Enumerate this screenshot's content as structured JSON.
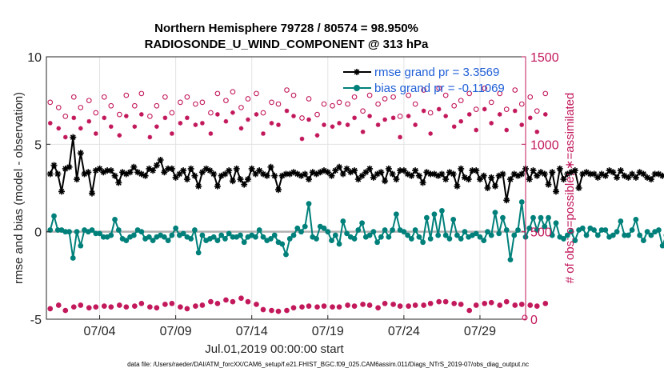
{
  "chart_data": {
    "type": "line",
    "title": "Northern Hemisphere 79728 / 80574 = 98.950%",
    "subtitle": "RADIOSONDE_U_WIND_COMPONENT @ 313 hPa",
    "xlabel": "Jul.01,2019 00:00:00 start",
    "ylabel": "rmse and bias (model - observation)",
    "ylabel_right": "# of obs: o=possible; ∗=assimilated",
    "footnote": "data file: /Users/raeder/DAI/ATM_forcXX/CAM6_setup/f.e21.FHIST_BGC.f09_025.CAM6assim.011/Diags_NTrS_2019-07/obs_diag_output.nc",
    "x_ticks": [
      "07/04",
      "07/09",
      "07/14",
      "07/19",
      "07/24",
      "07/29"
    ],
    "x_tick_days": [
      4,
      9,
      14,
      19,
      24,
      29
    ],
    "xlim": [
      0.5,
      32
    ],
    "ylim": [
      -5,
      10
    ],
    "y_ticks": [
      "-5",
      "0",
      "5",
      "10"
    ],
    "y_tick_values": [
      -5,
      0,
      5,
      10
    ],
    "ylim_right": [
      0,
      1500
    ],
    "y_ticks_right": [
      "0",
      "500",
      "1000",
      "1500"
    ],
    "y_tick_values_right": [
      0,
      500,
      1000,
      1500
    ],
    "grid": true,
    "legend_position": "top-right",
    "colors": {
      "rmse": "#000000",
      "bias": "#00807a",
      "obs": "#c2185b",
      "zero": "#b0b0b0"
    },
    "series": [
      {
        "name": "rmse grand pr = 3.3569",
        "step_days": 0.25,
        "start_day": 0.75,
        "values": [
          3.3,
          3.8,
          3.3,
          2.3,
          3.6,
          3.7,
          5.4,
          3.0,
          4.5,
          3.3,
          3.4,
          2.2,
          3.5,
          3.6,
          3.4,
          3.5,
          3.5,
          3.2,
          2.8,
          3.4,
          3.3,
          3.4,
          3.7,
          3.4,
          3.3,
          3.2,
          3.6,
          3.5,
          3.8,
          4.1,
          3.4,
          3.6,
          3.6,
          3.1,
          3.3,
          3.5,
          3.0,
          3.6,
          3.2,
          2.6,
          3.4,
          3.6,
          3.5,
          3.3,
          2.6,
          3.2,
          3.3,
          3.5,
          2.9,
          3.6,
          3.0,
          2.7,
          3.0,
          3.6,
          3.3,
          3.5,
          3.3,
          3.2,
          3.7,
          3.2,
          2.4,
          3.2,
          3.3,
          3.3,
          3.4,
          3.3,
          3.2,
          3.3,
          3.0,
          3.4,
          3.3,
          3.4,
          3.5,
          3.4,
          3.2,
          3.5,
          3.7,
          3.3,
          3.6,
          3.4,
          3.5,
          3.0,
          3.2,
          3.4,
          3.6,
          3.1,
          3.3,
          3.4,
          2.9,
          3.6,
          3.3,
          3.0,
          3.5,
          3.5,
          3.3,
          3.2,
          3.5,
          3.2,
          2.8,
          3.4,
          3.3,
          3.3,
          3.2,
          3.3,
          3.0,
          3.4,
          3.3,
          2.6,
          3.6,
          3.1,
          3.0,
          3.5,
          3.5,
          3.0,
          3.2,
          2.5,
          3.1,
          2.6,
          3.2,
          3.3,
          1.8,
          3.0,
          3.3,
          3.2,
          3.3,
          3.6,
          3.0,
          3.5,
          3.2,
          3.4,
          3.3,
          2.7,
          3.4,
          2.3,
          3.6,
          3.0,
          3.3,
          3.4,
          3.5,
          2.5,
          3.3,
          3.4,
          3.3,
          3.3,
          3.1,
          3.3,
          3.2,
          3.5,
          3.4,
          3.1,
          3.5,
          3.2,
          3.1,
          3.3,
          3.1,
          3.4,
          3.3,
          3.1,
          3.0,
          3.3,
          3.3,
          3.2,
          3.2,
          3.1
        ]
      },
      {
        "name": "bias grand pr = -0.11069",
        "step_days": 0.25,
        "start_day": 0.75,
        "values": [
          0.1,
          0.9,
          0.1,
          0.1,
          0.0,
          0.0,
          -1.5,
          0.0,
          -0.8,
          0.1,
          0.0,
          0.1,
          -0.1,
          -0.1,
          -0.3,
          -0.3,
          -0.2,
          0.7,
          0.1,
          -0.4,
          -0.5,
          -0.3,
          -0.2,
          0.1,
          0.0,
          -0.4,
          -0.3,
          -0.5,
          -0.3,
          -0.2,
          -0.3,
          -0.5,
          -0.2,
          0.2,
          -0.2,
          -0.1,
          -0.3,
          -0.4,
          0.1,
          -1.2,
          -0.2,
          -0.5,
          -0.4,
          -0.3,
          -0.5,
          -0.2,
          -0.4,
          -0.1,
          -0.3,
          -0.3,
          -0.2,
          -0.6,
          -0.3,
          -0.2,
          -0.3,
          0.1,
          -0.3,
          -0.5,
          -0.4,
          -0.2,
          -0.6,
          -0.7,
          -1.3,
          -0.4,
          -0.2,
          0.2,
          0.0,
          0.3,
          1.6,
          -0.3,
          -0.4,
          0.3,
          0.2,
          0.0,
          -0.5,
          -0.2,
          -0.7,
          0.6,
          -0.1,
          -0.3,
          -0.4,
          0.1,
          0.5,
          -0.3,
          -0.2,
          0.0,
          -0.6,
          -0.3,
          0.1,
          -0.3,
          0.1,
          1.0,
          0.1,
          0.0,
          -0.2,
          -0.4,
          0.1,
          -0.3,
          -0.6,
          0.8,
          -0.4,
          1.0,
          -0.2,
          1.2,
          -0.2,
          -0.4,
          0.7,
          -0.2,
          -0.4,
          0.0,
          -0.3,
          -0.2,
          -0.1,
          -0.3,
          -0.5,
          0.0,
          -0.2,
          1.1,
          -0.1,
          0.8,
          0.1,
          -1.6,
          -0.2,
          0.1,
          1.7,
          -0.3,
          0.2,
          0.8,
          0.1,
          0.8,
          0.3,
          0.8,
          -0.2,
          0.5,
          -0.3,
          -0.4,
          -0.2,
          0.0,
          -0.5,
          0.1,
          0.2,
          -0.2,
          0.2,
          0.1,
          -0.2,
          0.1,
          0.1,
          -0.3,
          -0.2,
          0.0,
          0.6,
          -0.2,
          -0.2,
          0.1,
          0.7,
          -0.2,
          -0.5,
          0.0,
          -0.2,
          0.0,
          0.1,
          -0.8,
          -0.2,
          -0.2,
          0.0,
          0.1
        ]
      }
    ],
    "obs_possible": {
      "step_days": 0.5,
      "start_day": 0.75,
      "upper": [
        1240,
        1210,
        1160,
        1270,
        1210,
        1250,
        1180,
        1270,
        1220,
        1170,
        1280,
        1220,
        1290,
        1160,
        1220,
        1270,
        1180,
        1240,
        1270,
        1230,
        1240,
        1180,
        1290,
        1250,
        1300,
        1210,
        1260,
        1290,
        1180,
        1240,
        1230,
        1310,
        1280,
        1150,
        1260,
        1170,
        1230,
        1220,
        1240,
        1230,
        1270,
        1190,
        1280,
        1230,
        1260,
        1270,
        1160,
        1280,
        1230,
        1310,
        1180,
        1320,
        1280,
        1220,
        1250,
        1290,
        1200,
        1320,
        1240,
        1290,
        1200,
        1310,
        1230,
        1270,
        1190,
        1290
      ],
      "lower": [
        60,
        80,
        50,
        70,
        80,
        65,
        70,
        75,
        70,
        80,
        70,
        75,
        90,
        70,
        65,
        85,
        90,
        70,
        60,
        75,
        80,
        100,
        90,
        110,
        100,
        120,
        100,
        85,
        55,
        50,
        45,
        50,
        65,
        70,
        75,
        70,
        75,
        70,
        70,
        80,
        75,
        85,
        80,
        65,
        90,
        85,
        75,
        75,
        80,
        80,
        90,
        100,
        100,
        90,
        85,
        50,
        80,
        90,
        95,
        80,
        100,
        80,
        85,
        80,
        75,
        90
      ]
    }
  }
}
